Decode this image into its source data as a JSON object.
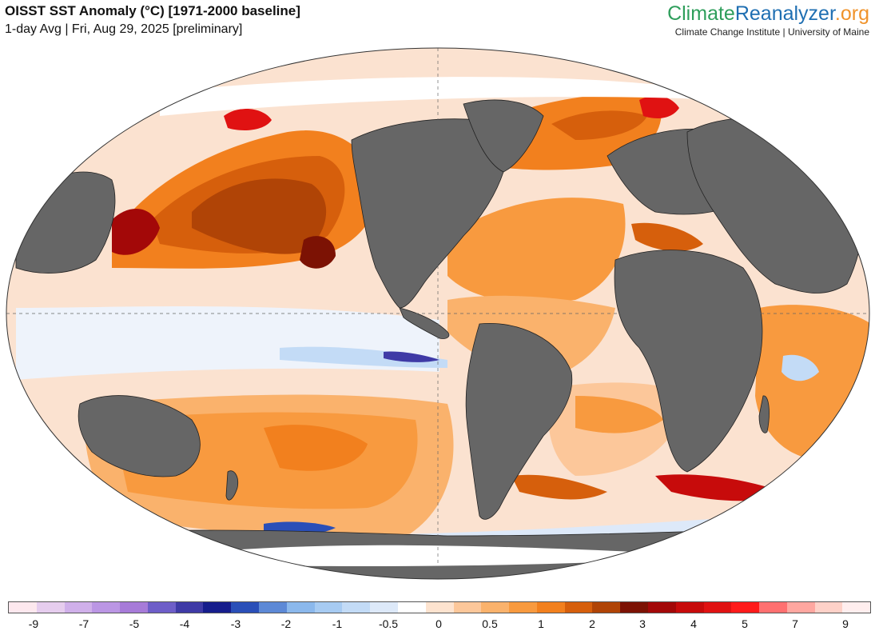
{
  "header": {
    "title": "OISST SST Anomaly (°C) [1971-2000 baseline]",
    "subtitle": "1-day Avg | Fri, Aug 29, 2025 [preliminary]"
  },
  "brand": {
    "name_part1": "Climate",
    "name_part2": "Reanalyzer",
    "name_part3": ".org",
    "tagline": "Climate Change Institute | University of Maine"
  },
  "colorbar": {
    "colors": [
      "#fde8ee",
      "#e6cdee",
      "#d0b0ea",
      "#bb96e4",
      "#a77bd8",
      "#6e5ec8",
      "#3f3aa6",
      "#161d8c",
      "#2a4fb8",
      "#5d89d6",
      "#8bb8ec",
      "#a7cbf2",
      "#c3dbf6",
      "#dde9f9",
      "#ffffff",
      "#fde3cf",
      "#fcc79a",
      "#fab26c",
      "#f89a3f",
      "#f2801e",
      "#d65f0c",
      "#b04406",
      "#7c1204",
      "#a30808",
      "#c70b0b",
      "#e01212",
      "#ff1a1a",
      "#ff7070",
      "#ffa7a0",
      "#fed1c8",
      "#ffeeee"
    ],
    "ticks": [
      "-9",
      "-7",
      "-5",
      "-4",
      "-3",
      "-2",
      "-1",
      "-0.5",
      "0",
      "0.5",
      "1",
      "2",
      "3",
      "4",
      "5",
      "7",
      "9"
    ],
    "land_color": "#666666",
    "ice_color": "#ffffff"
  }
}
